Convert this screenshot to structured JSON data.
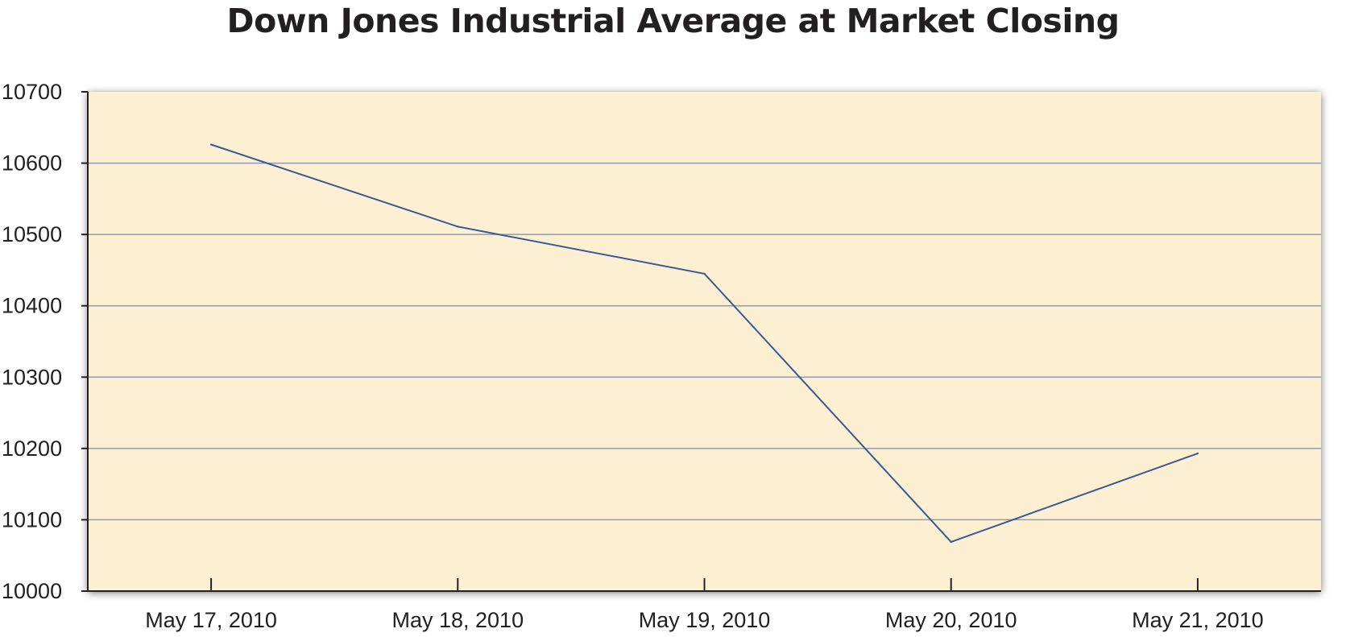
{
  "colors": {
    "plot_background": "#fdf0d2",
    "line": "#3a5a94",
    "gridline": "#8f9bb3",
    "axis": "#231f20",
    "text": "#231f20"
  },
  "chart_data": {
    "type": "line",
    "title": "Down Jones Industrial Average at Market Closing",
    "xlabel": "",
    "ylabel": "",
    "categories": [
      "May 17, 2010",
      "May 18, 2010",
      "May 19, 2010",
      "May 20, 2010",
      "May 21, 2010"
    ],
    "series": [
      {
        "values": [
          10626,
          10511,
          10445,
          10069,
          10193
        ]
      }
    ],
    "ylim": [
      10000,
      10700
    ],
    "yticks": [
      10000,
      10100,
      10200,
      10300,
      10400,
      10500,
      10600,
      10700
    ],
    "grid": true,
    "legend": "none"
  }
}
